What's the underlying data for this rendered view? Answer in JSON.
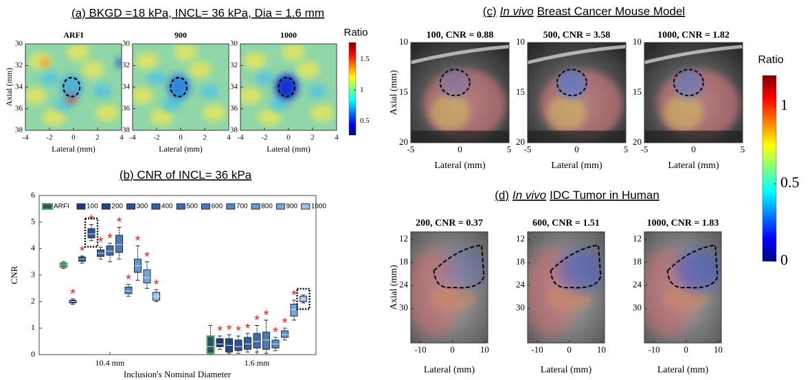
{
  "chart_data": [
    {
      "type": "image",
      "title": "(a) BKGD =18 kPa, INCL= 36 kPa, Dia =  1.6 mm",
      "panels": [
        {
          "title": "ARFI"
        },
        {
          "title": "900"
        },
        {
          "title": "1000"
        }
      ],
      "xlabel": "Lateral (mm)",
      "ylabel": "Axial (mm)",
      "xlim": [
        -4,
        4
      ],
      "xticks": [
        -4,
        -2,
        0,
        2,
        4
      ],
      "ylim": [
        30,
        38
      ],
      "yticks": [
        30,
        32,
        34,
        36,
        38
      ],
      "y_inverted": true,
      "colorbar": {
        "label": "Ratio",
        "lim": [
          0.27,
          1.77
        ],
        "ticks": [
          0.5,
          1,
          1.5
        ]
      }
    },
    {
      "type": "box",
      "title": "(b) CNR of INCL= 36 kPa",
      "xlabel": "Inclusion's Nominal Diameter",
      "ylabel": "CNR",
      "categories": [
        "10.4 mm",
        "1.6 mm"
      ],
      "ylim": [
        0,
        6
      ],
      "yticks": [
        0,
        1,
        2,
        3,
        4,
        5,
        6
      ],
      "significance_label": "*",
      "series": [
        {
          "name": "ARFI",
          "color": "#4caf50",
          "whisker_low": [
            3.25,
            0
          ],
          "q1": [
            3.3,
            0.05
          ],
          "median": [
            3.38,
            0.3
          ],
          "q3": [
            3.45,
            0.7
          ],
          "whisker_high": [
            3.5,
            1.1
          ],
          "significant": [
            false,
            false
          ],
          "highlight": [
            false,
            false
          ]
        },
        {
          "name": "100",
          "color": "#1f3b73",
          "whisker_low": [
            1.9,
            0.2
          ],
          "q1": [
            1.95,
            0.3
          ],
          "median": [
            2.0,
            0.4
          ],
          "q3": [
            2.05,
            0.6
          ],
          "whisker_high": [
            2.1,
            0.7
          ],
          "significant": [
            true,
            true
          ],
          "highlight": [
            false,
            false
          ]
        },
        {
          "name": "200",
          "color": "#27477f",
          "whisker_low": [
            3.45,
            0.05
          ],
          "q1": [
            3.52,
            0.1
          ],
          "median": [
            3.6,
            0.35
          ],
          "q3": [
            3.68,
            0.6
          ],
          "whisker_high": [
            3.72,
            0.75
          ],
          "significant": [
            true,
            true
          ],
          "highlight": [
            false,
            false
          ]
        },
        {
          "name": "300",
          "color": "#2f538c",
          "whisker_low": [
            4.3,
            0.05
          ],
          "q1": [
            4.4,
            0.15
          ],
          "median": [
            4.55,
            0.3
          ],
          "q3": [
            4.75,
            0.55
          ],
          "whisker_high": [
            4.9,
            0.7
          ],
          "significant": [
            true,
            true
          ],
          "highlight": [
            true,
            false
          ]
        },
        {
          "name": "400",
          "color": "#375f98",
          "whisker_low": [
            3.6,
            0.1
          ],
          "q1": [
            3.7,
            0.2
          ],
          "median": [
            3.82,
            0.4
          ],
          "q3": [
            3.95,
            0.65
          ],
          "whisker_high": [
            4.05,
            0.8
          ],
          "significant": [
            true,
            true
          ],
          "highlight": [
            false,
            false
          ]
        },
        {
          "name": "500",
          "color": "#416ca5",
          "whisker_low": [
            3.5,
            0.1
          ],
          "q1": [
            3.75,
            0.25
          ],
          "median": [
            3.9,
            0.5
          ],
          "q3": [
            4.1,
            0.8
          ],
          "whisker_high": [
            4.2,
            1.1
          ],
          "significant": [
            true,
            true
          ],
          "highlight": [
            false,
            false
          ]
        },
        {
          "name": "600",
          "color": "#4d7ab2",
          "whisker_low": [
            3.6,
            0.05
          ],
          "q1": [
            3.85,
            0.2
          ],
          "median": [
            4.15,
            0.55
          ],
          "q3": [
            4.5,
            0.85
          ],
          "whisker_high": [
            4.8,
            1.3
          ],
          "significant": [
            true,
            true
          ],
          "highlight": [
            false,
            false
          ]
        },
        {
          "name": "700",
          "color": "#5a88be",
          "whisker_low": [
            2.2,
            0.15
          ],
          "q1": [
            2.3,
            0.25
          ],
          "median": [
            2.4,
            0.4
          ],
          "q3": [
            2.55,
            0.55
          ],
          "whisker_high": [
            2.65,
            0.65
          ],
          "significant": [
            true,
            true
          ],
          "highlight": [
            false,
            false
          ]
        },
        {
          "name": "800",
          "color": "#6996c9",
          "whisker_low": [
            2.8,
            0.55
          ],
          "q1": [
            3.1,
            0.65
          ],
          "median": [
            3.35,
            0.75
          ],
          "q3": [
            3.6,
            0.9
          ],
          "whisker_high": [
            4.1,
            1.0
          ],
          "significant": [
            true,
            true
          ],
          "highlight": [
            false,
            false
          ]
        },
        {
          "name": "900",
          "color": "#7aa5d3",
          "whisker_low": [
            2.5,
            1.3
          ],
          "q1": [
            2.7,
            1.45
          ],
          "median": [
            2.9,
            1.7
          ],
          "q3": [
            3.2,
            1.9
          ],
          "whisker_high": [
            3.5,
            2.05
          ],
          "significant": [
            true,
            true
          ],
          "highlight": [
            false,
            false
          ]
        },
        {
          "name": "1000",
          "color": "#a0c3e5",
          "whisker_low": [
            2.0,
            1.95
          ],
          "q1": [
            2.05,
            2.0
          ],
          "median": [
            2.2,
            2.1
          ],
          "q3": [
            2.35,
            2.2
          ],
          "whisker_high": [
            2.45,
            2.25
          ],
          "significant": [
            true,
            false
          ],
          "highlight": [
            false,
            true
          ]
        }
      ]
    },
    {
      "type": "image",
      "title_parts": [
        "(c)",
        "In vivo",
        "Breast Cancer Mouse Model"
      ],
      "panels": [
        {
          "title": "100, CNR = 0.88"
        },
        {
          "title": "500, CNR = 3.58"
        },
        {
          "title": "1000, CNR = 1.82"
        }
      ],
      "xlabel": "Lateral (mm)",
      "ylabel": "Axial (mm)",
      "xlim": [
        -5,
        5
      ],
      "xticks": [
        -5,
        0,
        5
      ],
      "ylim": [
        10,
        20
      ],
      "yticks": [
        10,
        15,
        20
      ],
      "y_inverted": true,
      "colorbar": {
        "label": "Ratio",
        "lim": [
          0,
          1.2
        ],
        "ticks": [
          0,
          0.5,
          1
        ]
      }
    },
    {
      "type": "image",
      "title_parts": [
        "(d)",
        "In vivo",
        "IDC Tumor in Human"
      ],
      "panels": [
        {
          "title": "200, CNR = 0.37"
        },
        {
          "title": "600, CNR = 1.51"
        },
        {
          "title": "1000, CNR = 1.83"
        }
      ],
      "xlabel": "Lateral (mm)",
      "ylabel": "Axial (mm)",
      "xlim": [
        -13,
        11
      ],
      "xticks": [
        -10,
        0,
        10
      ],
      "ylim": [
        10,
        39
      ],
      "yticks": [
        12,
        18,
        24,
        30
      ],
      "y_inverted": true
    }
  ]
}
